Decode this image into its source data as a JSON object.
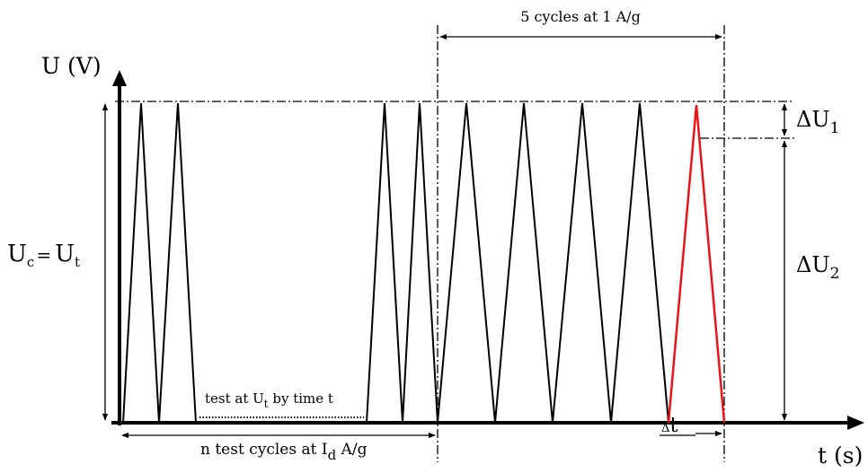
{
  "diagram": {
    "y_axis_label": "U (V)",
    "x_axis_label": "t (s)",
    "left_dimension_label": {
      "main": "U",
      "sub1": "c",
      "eq": "=",
      "main2": "U",
      "sub2": "t"
    },
    "top_bracket_label": "5 cycles at 1 A/g",
    "delta_u1": {
      "main": "ΔU",
      "sub": "1"
    },
    "delta_u2": {
      "main": "ΔU",
      "sub": "2"
    },
    "hold_label": {
      "pre": "test at U",
      "sub": "t",
      "post": " by time t"
    },
    "bottom_bracket_label": {
      "pre": "n test cycles at I",
      "sub": "d",
      "post": "  A/g"
    },
    "delta_t_label": {
      "small": "Δ",
      "main": "t"
    },
    "colors": {
      "line": "#000000",
      "highlight_cycle": "#e8141a"
    }
  }
}
